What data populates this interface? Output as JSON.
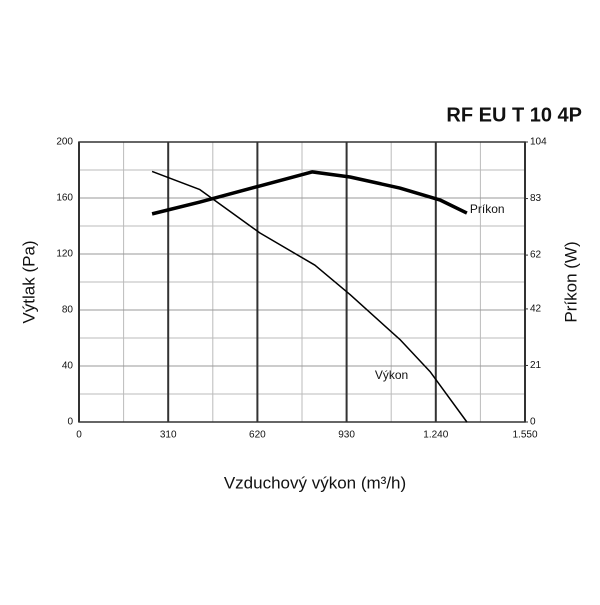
{
  "chart_data": {
    "type": "line",
    "title": "RF EU T 10 4P",
    "x_label": "Vzduchový výkon (m³/h)",
    "y_label": "Výtlak (Pa)",
    "y2_label": "Príkon (W)",
    "xlim": [
      0,
      1550
    ],
    "xticks": [
      0,
      310,
      620,
      930,
      {
        "value": 1240,
        "label": "1.240"
      },
      {
        "value": 1550,
        "label": "1.550"
      }
    ],
    "ylim": [
      0,
      200
    ],
    "yticks": [
      0,
      40,
      80,
      120,
      160,
      200
    ],
    "y2lim": [
      0,
      104
    ],
    "y2ticks": [
      0,
      21,
      42,
      62,
      83,
      104
    ],
    "grid": true,
    "series": [
      {
        "name": "Výkon",
        "color": "#000000",
        "x": [
          254,
          420,
          629,
          820,
          942,
          1115,
          1220,
          1348
        ],
        "values": [
          179,
          166,
          135,
          112,
          91,
          59,
          36,
          0
        ]
      },
      {
        "name": "Príkon",
        "color": "#000000",
        "axis": "y2",
        "x": [
          254,
          420,
          629,
          810,
          942,
          1115,
          1254,
          1348
        ],
        "values": [
          77.3,
          81.7,
          87.7,
          92.9,
          91,
          86.9,
          82.5,
          77.6
        ]
      }
    ]
  }
}
